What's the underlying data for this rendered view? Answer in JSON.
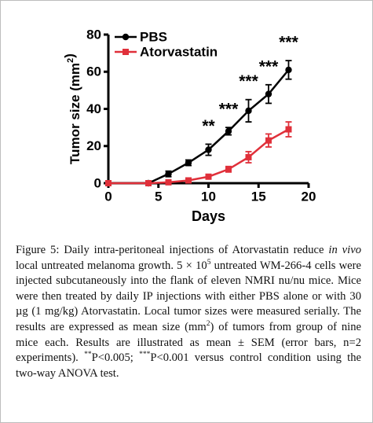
{
  "chart_data": {
    "type": "line",
    "ylabel": [
      "Tumor size (mm",
      {
        "sup": "2"
      },
      ")"
    ],
    "xlabel": "Days",
    "x": [
      0,
      4,
      6,
      8,
      10,
      12,
      14,
      16,
      18
    ],
    "series": [
      {
        "name": "PBS",
        "color": "#000000",
        "marker": "circle",
        "values": [
          0,
          0,
          5,
          11,
          18,
          28,
          39,
          48,
          61
        ],
        "errors": [
          0,
          0,
          1.5,
          1.5,
          3,
          2,
          6,
          5,
          5
        ]
      },
      {
        "name": "Atorvastatin",
        "color": "#e0303a",
        "marker": "square",
        "values": [
          0,
          0,
          0.5,
          1.5,
          3.5,
          7.5,
          14,
          23,
          29
        ],
        "errors": [
          0,
          0,
          0.5,
          0.5,
          1,
          1.5,
          3,
          3.5,
          4
        ]
      }
    ],
    "annotations": [
      {
        "text": "**",
        "x": 10
      },
      {
        "text": "***",
        "x": 12
      },
      {
        "text": "***",
        "x": 14
      },
      {
        "text": "***",
        "x": 16
      },
      {
        "text": "***",
        "x": 18
      }
    ],
    "xlim": [
      0,
      20
    ],
    "xticks": [
      0,
      5,
      10,
      15,
      20
    ],
    "ylim": [
      0,
      80
    ],
    "yticks": [
      0,
      20,
      40,
      60,
      80
    ],
    "legend": "top-left"
  },
  "caption": {
    "label": "Figure 5:",
    "runs": [
      " Daily intra-peritoneal injections of Atorvastatin reduce ",
      {
        "italic": "in vivo"
      },
      " local untreated melanoma growth. 5 × 10",
      {
        "sup": "5"
      },
      " untreated WM-266-4 cells were injected subcutaneously into the flank of eleven NMRI nu/nu mice. Mice were then treated by daily IP injections with either PBS alone or with 30 µg (1 mg/kg) Atorvastatin. Local tumor sizes were measured serially. The results are expressed as mean size (mm",
      {
        "sup": "2"
      },
      ") of tumors from group of nine mice each. Results are illustrated as mean ± SEM (error bars, n=2 experiments). ",
      {
        "sup": "**"
      },
      "P<0.005; ",
      {
        "sup": "***"
      },
      "P<0.001 versus control condition using the two-way ANOVA test."
    ]
  }
}
